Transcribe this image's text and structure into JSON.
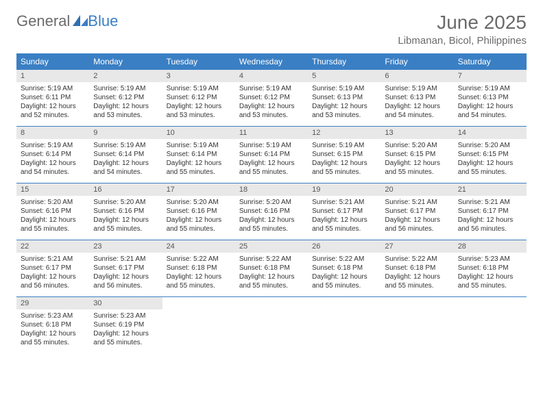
{
  "logo": {
    "text1": "General",
    "text2": "Blue"
  },
  "title": "June 2025",
  "location": "Libmanan, Bicol, Philippines",
  "colors": {
    "header_bg": "#3a7fc4",
    "header_text": "#ffffff",
    "daynum_bg": "#e8e8e8",
    "rule": "#3a7fc4",
    "text": "#333333",
    "muted": "#6a6a6a"
  },
  "day_headers": [
    "Sunday",
    "Monday",
    "Tuesday",
    "Wednesday",
    "Thursday",
    "Friday",
    "Saturday"
  ],
  "weeks": [
    [
      {
        "n": "1",
        "sr": "Sunrise: 5:19 AM",
        "ss": "Sunset: 6:11 PM",
        "d1": "Daylight: 12 hours",
        "d2": "and 52 minutes."
      },
      {
        "n": "2",
        "sr": "Sunrise: 5:19 AM",
        "ss": "Sunset: 6:12 PM",
        "d1": "Daylight: 12 hours",
        "d2": "and 53 minutes."
      },
      {
        "n": "3",
        "sr": "Sunrise: 5:19 AM",
        "ss": "Sunset: 6:12 PM",
        "d1": "Daylight: 12 hours",
        "d2": "and 53 minutes."
      },
      {
        "n": "4",
        "sr": "Sunrise: 5:19 AM",
        "ss": "Sunset: 6:12 PM",
        "d1": "Daylight: 12 hours",
        "d2": "and 53 minutes."
      },
      {
        "n": "5",
        "sr": "Sunrise: 5:19 AM",
        "ss": "Sunset: 6:13 PM",
        "d1": "Daylight: 12 hours",
        "d2": "and 53 minutes."
      },
      {
        "n": "6",
        "sr": "Sunrise: 5:19 AM",
        "ss": "Sunset: 6:13 PM",
        "d1": "Daylight: 12 hours",
        "d2": "and 54 minutes."
      },
      {
        "n": "7",
        "sr": "Sunrise: 5:19 AM",
        "ss": "Sunset: 6:13 PM",
        "d1": "Daylight: 12 hours",
        "d2": "and 54 minutes."
      }
    ],
    [
      {
        "n": "8",
        "sr": "Sunrise: 5:19 AM",
        "ss": "Sunset: 6:14 PM",
        "d1": "Daylight: 12 hours",
        "d2": "and 54 minutes."
      },
      {
        "n": "9",
        "sr": "Sunrise: 5:19 AM",
        "ss": "Sunset: 6:14 PM",
        "d1": "Daylight: 12 hours",
        "d2": "and 54 minutes."
      },
      {
        "n": "10",
        "sr": "Sunrise: 5:19 AM",
        "ss": "Sunset: 6:14 PM",
        "d1": "Daylight: 12 hours",
        "d2": "and 55 minutes."
      },
      {
        "n": "11",
        "sr": "Sunrise: 5:19 AM",
        "ss": "Sunset: 6:14 PM",
        "d1": "Daylight: 12 hours",
        "d2": "and 55 minutes."
      },
      {
        "n": "12",
        "sr": "Sunrise: 5:19 AM",
        "ss": "Sunset: 6:15 PM",
        "d1": "Daylight: 12 hours",
        "d2": "and 55 minutes."
      },
      {
        "n": "13",
        "sr": "Sunrise: 5:20 AM",
        "ss": "Sunset: 6:15 PM",
        "d1": "Daylight: 12 hours",
        "d2": "and 55 minutes."
      },
      {
        "n": "14",
        "sr": "Sunrise: 5:20 AM",
        "ss": "Sunset: 6:15 PM",
        "d1": "Daylight: 12 hours",
        "d2": "and 55 minutes."
      }
    ],
    [
      {
        "n": "15",
        "sr": "Sunrise: 5:20 AM",
        "ss": "Sunset: 6:16 PM",
        "d1": "Daylight: 12 hours",
        "d2": "and 55 minutes."
      },
      {
        "n": "16",
        "sr": "Sunrise: 5:20 AM",
        "ss": "Sunset: 6:16 PM",
        "d1": "Daylight: 12 hours",
        "d2": "and 55 minutes."
      },
      {
        "n": "17",
        "sr": "Sunrise: 5:20 AM",
        "ss": "Sunset: 6:16 PM",
        "d1": "Daylight: 12 hours",
        "d2": "and 55 minutes."
      },
      {
        "n": "18",
        "sr": "Sunrise: 5:20 AM",
        "ss": "Sunset: 6:16 PM",
        "d1": "Daylight: 12 hours",
        "d2": "and 55 minutes."
      },
      {
        "n": "19",
        "sr": "Sunrise: 5:21 AM",
        "ss": "Sunset: 6:17 PM",
        "d1": "Daylight: 12 hours",
        "d2": "and 55 minutes."
      },
      {
        "n": "20",
        "sr": "Sunrise: 5:21 AM",
        "ss": "Sunset: 6:17 PM",
        "d1": "Daylight: 12 hours",
        "d2": "and 56 minutes."
      },
      {
        "n": "21",
        "sr": "Sunrise: 5:21 AM",
        "ss": "Sunset: 6:17 PM",
        "d1": "Daylight: 12 hours",
        "d2": "and 56 minutes."
      }
    ],
    [
      {
        "n": "22",
        "sr": "Sunrise: 5:21 AM",
        "ss": "Sunset: 6:17 PM",
        "d1": "Daylight: 12 hours",
        "d2": "and 56 minutes."
      },
      {
        "n": "23",
        "sr": "Sunrise: 5:21 AM",
        "ss": "Sunset: 6:17 PM",
        "d1": "Daylight: 12 hours",
        "d2": "and 56 minutes."
      },
      {
        "n": "24",
        "sr": "Sunrise: 5:22 AM",
        "ss": "Sunset: 6:18 PM",
        "d1": "Daylight: 12 hours",
        "d2": "and 55 minutes."
      },
      {
        "n": "25",
        "sr": "Sunrise: 5:22 AM",
        "ss": "Sunset: 6:18 PM",
        "d1": "Daylight: 12 hours",
        "d2": "and 55 minutes."
      },
      {
        "n": "26",
        "sr": "Sunrise: 5:22 AM",
        "ss": "Sunset: 6:18 PM",
        "d1": "Daylight: 12 hours",
        "d2": "and 55 minutes."
      },
      {
        "n": "27",
        "sr": "Sunrise: 5:22 AM",
        "ss": "Sunset: 6:18 PM",
        "d1": "Daylight: 12 hours",
        "d2": "and 55 minutes."
      },
      {
        "n": "28",
        "sr": "Sunrise: 5:23 AM",
        "ss": "Sunset: 6:18 PM",
        "d1": "Daylight: 12 hours",
        "d2": "and 55 minutes."
      }
    ],
    [
      {
        "n": "29",
        "sr": "Sunrise: 5:23 AM",
        "ss": "Sunset: 6:18 PM",
        "d1": "Daylight: 12 hours",
        "d2": "and 55 minutes."
      },
      {
        "n": "30",
        "sr": "Sunrise: 5:23 AM",
        "ss": "Sunset: 6:19 PM",
        "d1": "Daylight: 12 hours",
        "d2": "and 55 minutes."
      },
      null,
      null,
      null,
      null,
      null
    ]
  ]
}
